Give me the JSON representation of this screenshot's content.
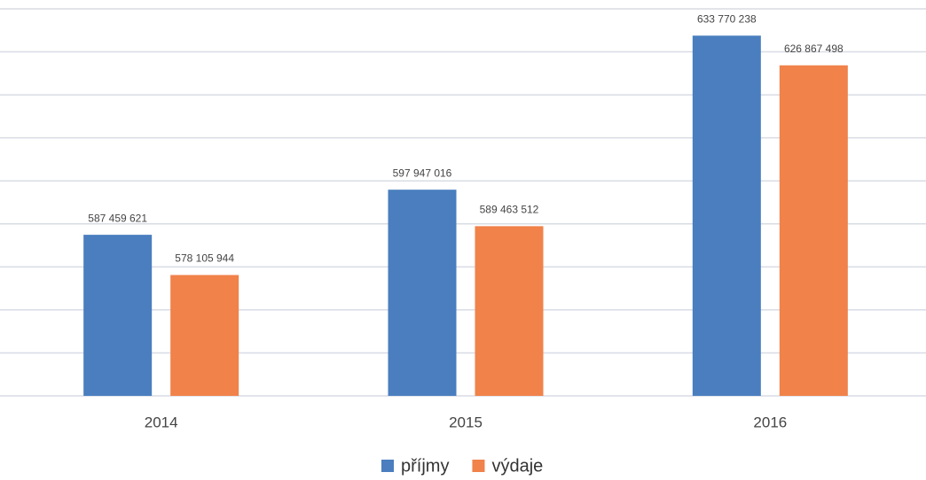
{
  "chart_data": {
    "type": "bar",
    "categories": [
      "2014",
      "2015",
      "2016"
    ],
    "series": [
      {
        "name": "příjmy",
        "color": "#4a7ebf",
        "values": [
          587459621,
          597947016,
          633770238
        ],
        "value_labels": [
          "587 459 621",
          "597 947 016",
          "633 770 238"
        ]
      },
      {
        "name": "výdaje",
        "color": "#f0824a",
        "values": [
          578105944,
          589463512,
          626867498
        ],
        "value_labels": [
          "578 105 944",
          "589 463 512",
          "626 867 498"
        ]
      }
    ],
    "ylim": [
      550000000,
      640000000
    ],
    "yticks": [
      550000000,
      560000000,
      570000000,
      580000000,
      590000000,
      600000000,
      610000000,
      620000000,
      630000000,
      640000000
    ],
    "grid": true,
    "legend": "bottom"
  }
}
